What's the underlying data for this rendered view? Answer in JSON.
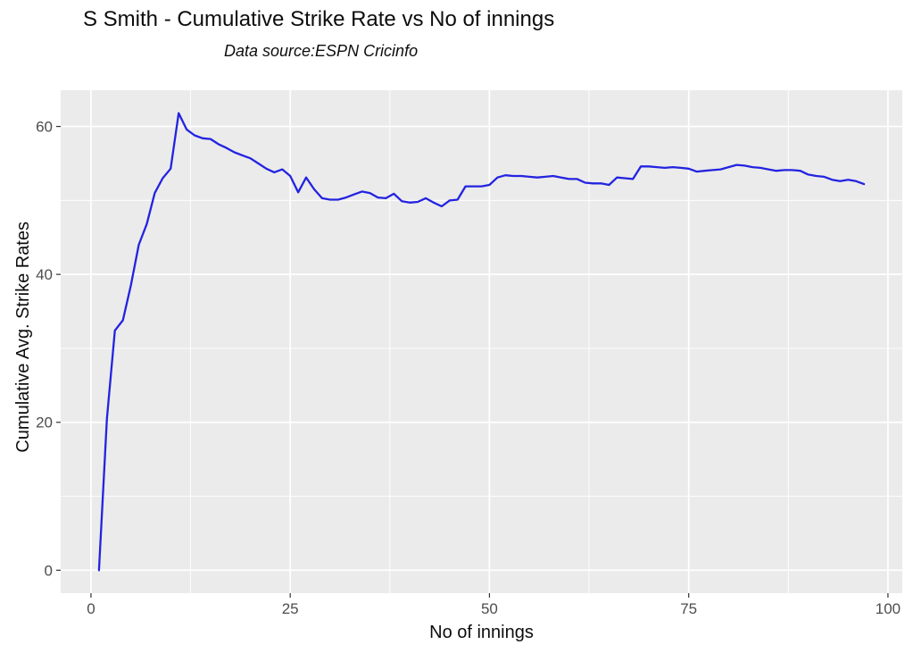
{
  "chart_data": {
    "type": "line",
    "title": "S Smith - Cumulative Strike Rate vs No of innings",
    "subtitle": "Data source:ESPN Cricinfo",
    "xlabel": "No of innings",
    "ylabel": "Cumulative Avg. Strike Rates",
    "series_name": "Cumulative Avg. Strike Rate",
    "legend": "none",
    "grid": "on",
    "x_ticks": [
      0,
      25,
      50,
      75,
      100
    ],
    "y_ticks": [
      0,
      20,
      40,
      60
    ],
    "x_minor": [
      12.5,
      37.5,
      62.5,
      87.5
    ],
    "y_minor": [
      10,
      30,
      50
    ],
    "xlim": [
      -3.8,
      101.8
    ],
    "ylim": [
      -3.1,
      64.9
    ],
    "panel_bg": "#EBEBEB",
    "grid_color": "#FFFFFF",
    "tick_color": "#333333",
    "tick_label_color": "#4D4D4D",
    "line_color": "#2323E1",
    "x": [
      1,
      2,
      3,
      4,
      5,
      6,
      7,
      8,
      9,
      10,
      11,
      12,
      13,
      14,
      15,
      16,
      17,
      18,
      19,
      20,
      21,
      22,
      23,
      24,
      25,
      26,
      27,
      28,
      29,
      30,
      31,
      32,
      33,
      34,
      35,
      36,
      37,
      38,
      39,
      40,
      41,
      42,
      43,
      44,
      45,
      46,
      47,
      48,
      49,
      50,
      51,
      52,
      53,
      54,
      55,
      56,
      57,
      58,
      59,
      60,
      61,
      62,
      63,
      64,
      65,
      66,
      67,
      68,
      69,
      70,
      71,
      72,
      73,
      74,
      75,
      76,
      77,
      78,
      79,
      80,
      81,
      82,
      83,
      84,
      85,
      86,
      87,
      88,
      89,
      90,
      91,
      92,
      93,
      94,
      95,
      96,
      97
    ],
    "y": [
      0,
      20.5,
      32.4,
      33.8,
      38.5,
      44.0,
      46.8,
      51.0,
      53.0,
      54.3,
      61.8,
      59.6,
      58.8,
      58.4,
      58.3,
      57.6,
      57.1,
      56.5,
      56.1,
      55.7,
      55.0,
      54.3,
      53.8,
      54.2,
      53.3,
      51.1,
      53.1,
      51.5,
      50.3,
      50.1,
      50.1,
      50.4,
      50.8,
      51.2,
      51.0,
      50.4,
      50.3,
      50.9,
      49.9,
      49.7,
      49.8,
      50.3,
      49.7,
      49.2,
      50.0,
      50.1,
      51.9,
      51.9,
      51.9,
      52.1,
      53.1,
      53.4,
      53.3,
      53.3,
      53.2,
      53.1,
      53.2,
      53.3,
      53.1,
      52.9,
      52.9,
      52.4,
      52.3,
      52.3,
      52.1,
      53.1,
      53.0,
      52.9,
      54.6,
      54.6,
      54.5,
      54.4,
      54.5,
      54.4,
      54.3,
      53.9,
      54.0,
      54.1,
      54.2,
      54.5,
      54.8,
      54.7,
      54.5,
      54.4,
      54.2,
      54.0,
      54.1,
      54.1,
      54.0,
      53.5,
      53.3,
      53.2,
      52.8,
      52.6,
      52.8,
      52.6,
      52.2
    ]
  }
}
